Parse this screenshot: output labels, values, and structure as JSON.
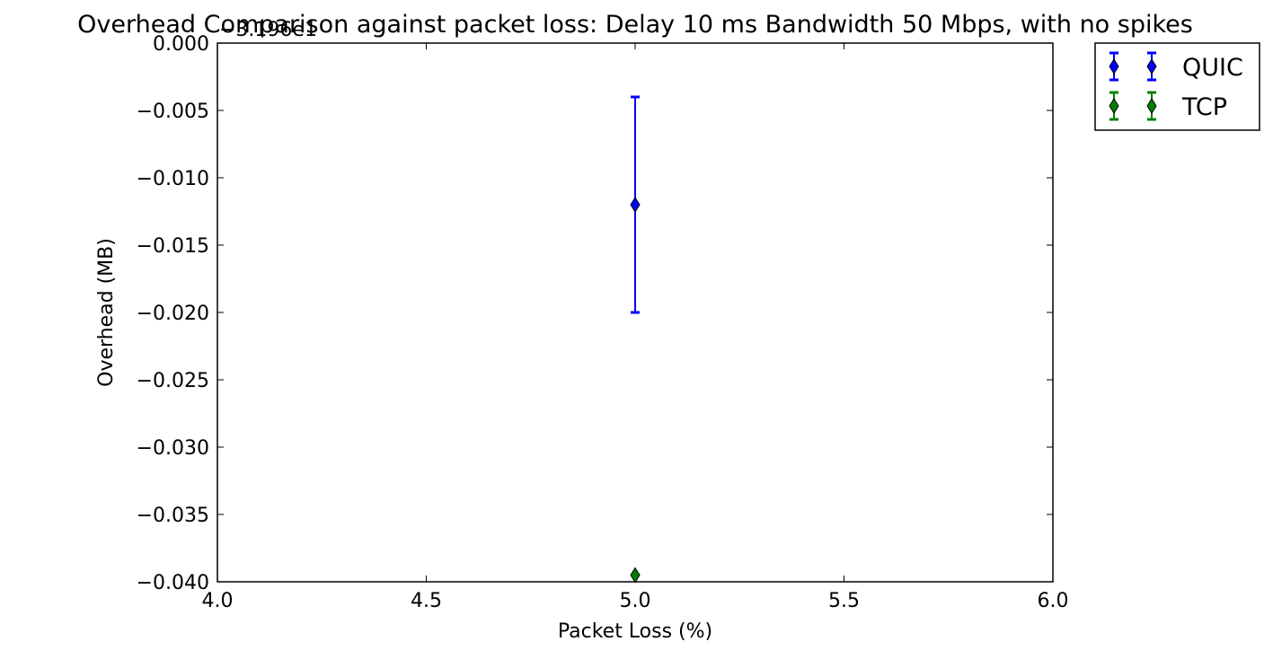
{
  "chart_data": {
    "type": "scatter",
    "title": "Overhead Comparison against packet loss: Delay 10 ms Bandwidth 50 Mbps, with no spikes",
    "xlabel": "Packet Loss (%)",
    "ylabel": "Overhead (MB)",
    "y_offset_label": "−3.196e1",
    "xlim": [
      4.0,
      6.0
    ],
    "ylim": [
      -0.04,
      0.0
    ],
    "x_ticks": [
      4.0,
      4.5,
      5.0,
      5.5,
      6.0
    ],
    "x_tick_labels": [
      "4.0",
      "4.5",
      "5.0",
      "5.5",
      "6.0"
    ],
    "y_ticks": [
      0.0,
      -0.005,
      -0.01,
      -0.015,
      -0.02,
      -0.025,
      -0.03,
      -0.035,
      -0.04
    ],
    "y_tick_labels": [
      "0.000",
      "−0.005",
      "−0.010",
      "−0.015",
      "−0.020",
      "−0.025",
      "−0.030",
      "−0.035",
      "−0.040"
    ],
    "grid": false,
    "legend_position": "outside-top-right",
    "series": [
      {
        "name": "QUIC",
        "color": "#0000ff",
        "marker": "thin-diamond",
        "points": [
          {
            "x": 5.0,
            "y": -0.012,
            "yerr_low": -0.02,
            "yerr_high": -0.004
          }
        ]
      },
      {
        "name": "TCP",
        "color": "#008000",
        "marker": "thin-diamond",
        "points": [
          {
            "x": 5.0,
            "y": -0.0395,
            "yerr_low": -0.0395,
            "yerr_high": -0.0395
          }
        ]
      }
    ]
  }
}
